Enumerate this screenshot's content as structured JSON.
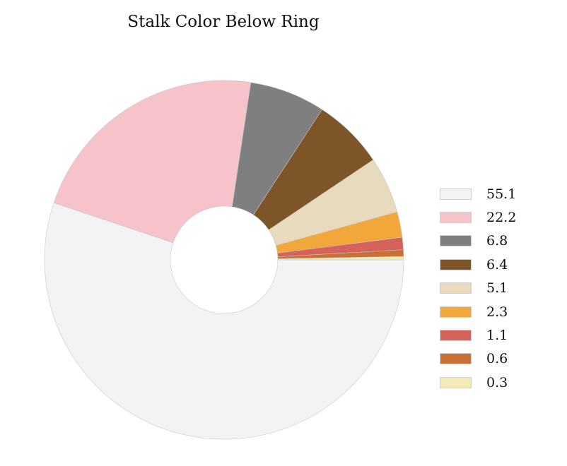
{
  "chart_data": {
    "type": "pie",
    "title": "Stalk Color Below Ring",
    "donut": true,
    "values": [
      55.1,
      22.2,
      6.8,
      6.4,
      5.1,
      2.3,
      1.1,
      0.6,
      0.3
    ],
    "labels": [
      "55.1",
      "22.2",
      "6.8",
      "6.4",
      "5.1",
      "2.3",
      "1.1",
      "0.6",
      "0.3"
    ],
    "colors": [
      "#f3f3f3",
      "#f6c3cb",
      "#7f7f7f",
      "#7e5429",
      "#e8dabd",
      "#f2a73b",
      "#d4625a",
      "#c97036",
      "#f2ebb5"
    ],
    "legend_position": "right",
    "start_angle_deg": 0,
    "direction": "clockwise"
  }
}
